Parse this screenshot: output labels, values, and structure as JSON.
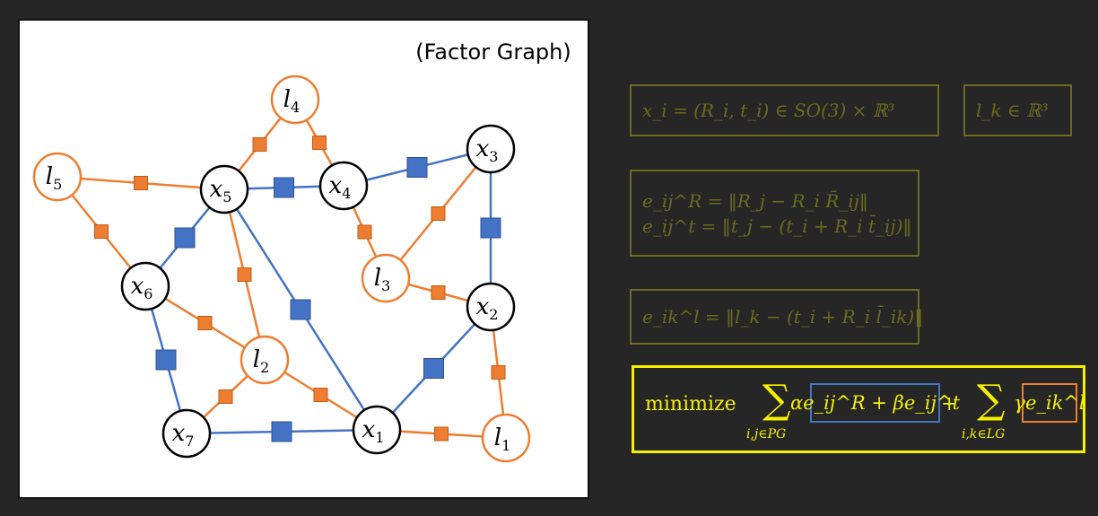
{
  "graph": {
    "title": "(Factor Graph)",
    "colors": {
      "pose_edge": "#4472c4",
      "landmark_edge": "#ed7d31",
      "pose_node": "#000000",
      "landmark_node": "#ed7d31"
    },
    "nodes": [
      {
        "id": "x1",
        "kind": "pose",
        "label": "x1"
      },
      {
        "id": "x2",
        "kind": "pose",
        "label": "x2"
      },
      {
        "id": "x3",
        "kind": "pose",
        "label": "x3"
      },
      {
        "id": "x4",
        "kind": "pose",
        "label": "x4"
      },
      {
        "id": "x5",
        "kind": "pose",
        "label": "x5"
      },
      {
        "id": "x6",
        "kind": "pose",
        "label": "x6"
      },
      {
        "id": "x7",
        "kind": "pose",
        "label": "x7"
      },
      {
        "id": "l1",
        "kind": "landmark",
        "label": "l1"
      },
      {
        "id": "l2",
        "kind": "landmark",
        "label": "l2"
      },
      {
        "id": "l3",
        "kind": "landmark",
        "label": "l3"
      },
      {
        "id": "l4",
        "kind": "landmark",
        "label": "l4"
      },
      {
        "id": "l5",
        "kind": "landmark",
        "label": "l5"
      }
    ],
    "edges": [
      {
        "from": "x5",
        "to": "x4",
        "kind": "pose"
      },
      {
        "from": "x4",
        "to": "x3",
        "kind": "pose"
      },
      {
        "from": "x3",
        "to": "x2",
        "kind": "pose"
      },
      {
        "from": "x2",
        "to": "x1",
        "kind": "pose"
      },
      {
        "from": "x1",
        "to": "x7",
        "kind": "pose"
      },
      {
        "from": "x7",
        "to": "x6",
        "kind": "pose"
      },
      {
        "from": "x6",
        "to": "x5",
        "kind": "pose"
      },
      {
        "from": "x5",
        "to": "x1",
        "kind": "pose"
      },
      {
        "from": "l4",
        "to": "x5",
        "kind": "landmark"
      },
      {
        "from": "l4",
        "to": "x4",
        "kind": "landmark"
      },
      {
        "from": "l5",
        "to": "x5",
        "kind": "landmark"
      },
      {
        "from": "l5",
        "to": "x6",
        "kind": "landmark"
      },
      {
        "from": "x4",
        "to": "l3",
        "kind": "landmark"
      },
      {
        "from": "x3",
        "to": "l3",
        "kind": "landmark"
      },
      {
        "from": "l3",
        "to": "x2",
        "kind": "landmark"
      },
      {
        "from": "x2",
        "to": "l1",
        "kind": "landmark"
      },
      {
        "from": "x1",
        "to": "l1",
        "kind": "landmark"
      },
      {
        "from": "x5",
        "to": "l2",
        "kind": "landmark"
      },
      {
        "from": "x6",
        "to": "l2",
        "kind": "landmark"
      },
      {
        "from": "l2",
        "to": "x7",
        "kind": "landmark"
      },
      {
        "from": "l2",
        "to": "x1",
        "kind": "landmark"
      }
    ]
  },
  "equations": {
    "color": "#6b6a1f",
    "state_pose": "x_i = (R_i, t_i) ∈ SO(3) × ℝ³",
    "state_landmark": "l_k ∈ ℝ³",
    "pose_rot_error": "e_ij^R = ‖R_j − R_i R̄_ij‖",
    "pose_trans_error": "e_ij^t = ‖t_j − (t_i + R_i t̄_ij)‖",
    "landmark_error": "e_ik^l = ‖l_k − (t_i + R_i l̄_ik)‖"
  },
  "objective": {
    "color": "#f5f000",
    "minimize": "minimize",
    "sum_symbol": "∑",
    "sum1_sub": "i,j∈PG",
    "pose_term": "αe_ij^R + βe_ij^t",
    "plus": "+",
    "sum2_sub": "i,k∈LG",
    "landmark_term": "γe_ik^l",
    "pose_term_border": "#4472c4",
    "landmark_term_border": "#ed7d31"
  }
}
